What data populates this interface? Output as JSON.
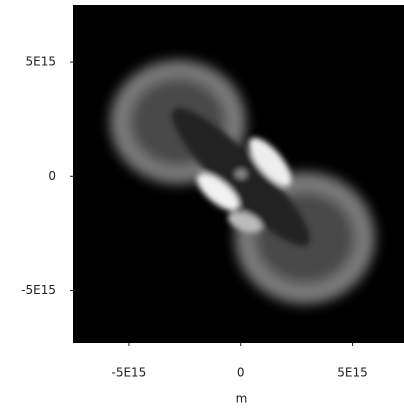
{
  "chart_data": {
    "type": "image",
    "x_label": "m",
    "xlim": [
      -7500000000000000.0,
      7300000000000000.0
    ],
    "ylim": [
      -7300000000000000.0,
      7500000000000000.0
    ],
    "xticks": [
      {
        "value": -5000000000000000.0,
        "label": "-5E15"
      },
      0,
      {
        "value": 5000000000000000.0,
        "label": "5E15"
      }
    ],
    "yticks": [
      {
        "value": -5000000000000000.0,
        "label": "-5E15"
      },
      0,
      {
        "value": 5000000000000000.0,
        "label": "5E15"
      }
    ],
    "colormap": "gray"
  }
}
